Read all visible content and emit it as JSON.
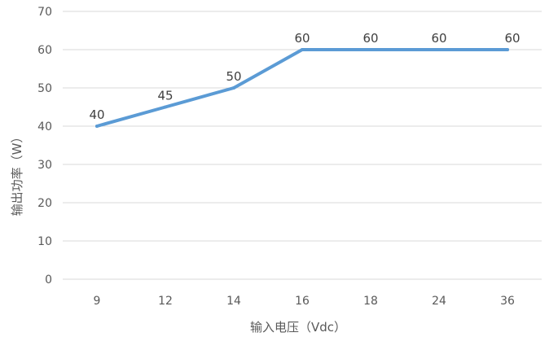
{
  "chart_data": {
    "type": "line",
    "categories": [
      "9",
      "12",
      "14",
      "16",
      "18",
      "24",
      "36"
    ],
    "series": [
      {
        "values": [
          40,
          45,
          50,
          60,
          60,
          60,
          60
        ]
      }
    ],
    "xlabel": "输入电压（Vdc）",
    "ylabel": "输出功率（W）",
    "ylim": [
      0,
      70
    ],
    "yticks": [
      0,
      10,
      20,
      30,
      40,
      50,
      60,
      70
    ],
    "grid": true,
    "data_labels": true,
    "legend": "none",
    "colors": {
      "line": "#5b9bd5",
      "grid": "#d9d9d9",
      "text": "#595959"
    }
  }
}
